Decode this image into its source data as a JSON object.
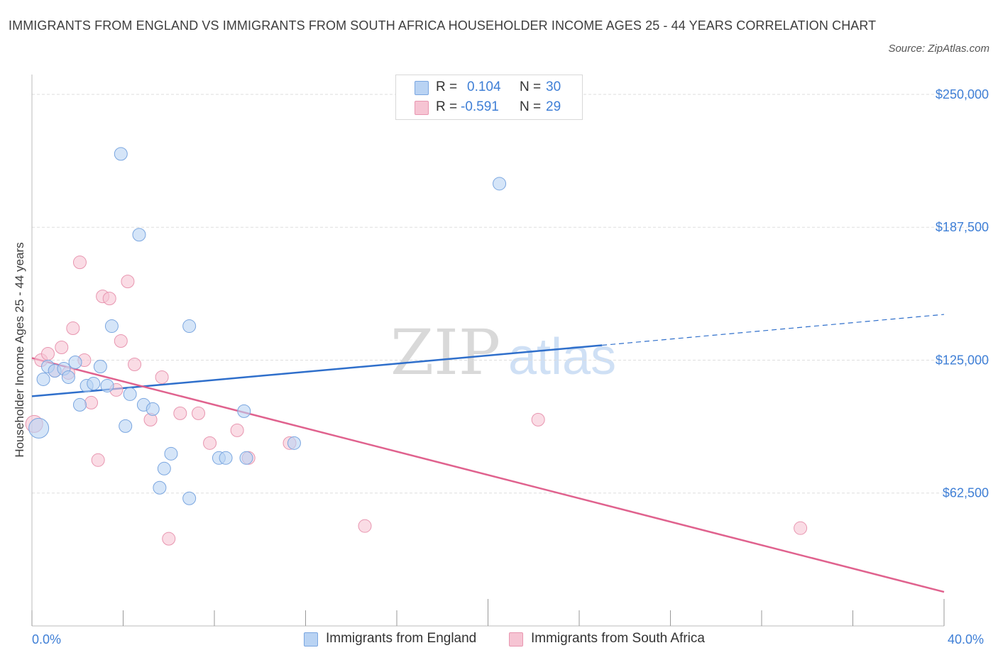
{
  "title": "IMMIGRANTS FROM ENGLAND VS IMMIGRANTS FROM SOUTH AFRICA HOUSEHOLDER INCOME AGES 25 - 44 YEARS CORRELATION CHART",
  "source": "Source: ZipAtlas.com",
  "watermark": {
    "zip": "ZIP",
    "atlas": "atlas"
  },
  "legend": {
    "england": {
      "r_label": "R =",
      "r_value": "0.104",
      "n_label": "N =",
      "n_value": "30"
    },
    "south_africa": {
      "r_label": "R =",
      "r_value": "-0.591",
      "n_label": "N =",
      "n_value": "29"
    }
  },
  "colors": {
    "england_fill": "#b9d3f3",
    "england_stroke": "#7aa6e0",
    "england_line": "#2f6fcb",
    "sa_fill": "#f6c4d3",
    "sa_stroke": "#e896b0",
    "sa_line": "#e0628e",
    "axis_text": "#3f7fd6",
    "grid": "#dddddd"
  },
  "chart_data": {
    "type": "scatter",
    "title": "IMMIGRANTS FROM ENGLAND VS IMMIGRANTS FROM SOUTH AFRICA HOUSEHOLDER INCOME AGES 25 - 44 YEARS CORRELATION CHART",
    "xlabel": "",
    "ylabel": "Householder Income Ages 25 - 44 years",
    "xlim": [
      0,
      40
    ],
    "ylim": [
      0,
      255000
    ],
    "x_tick_labels": [
      "0.0%",
      "40.0%"
    ],
    "y_ticks": [
      62500,
      125000,
      187500,
      250000
    ],
    "y_tick_labels": [
      "$62,500",
      "$125,000",
      "$187,500",
      "$250,000"
    ],
    "grid": true,
    "series": [
      {
        "name": "Immigrants from England",
        "points": [
          [
            0.3,
            93000,
            14
          ],
          [
            0.5,
            116000,
            9
          ],
          [
            0.7,
            122000,
            9
          ],
          [
            1.0,
            120000,
            9
          ],
          [
            1.4,
            121000,
            9
          ],
          [
            1.6,
            117000,
            9
          ],
          [
            1.9,
            124000,
            9
          ],
          [
            2.1,
            104000,
            9
          ],
          [
            2.4,
            113000,
            9
          ],
          [
            2.7,
            114000,
            9
          ],
          [
            3.0,
            122000,
            9
          ],
          [
            3.3,
            113000,
            9
          ],
          [
            3.5,
            141000,
            9
          ],
          [
            3.9,
            222000,
            9
          ],
          [
            4.1,
            94000,
            9
          ],
          [
            4.3,
            109000,
            9
          ],
          [
            4.7,
            184000,
            9
          ],
          [
            4.9,
            104000,
            9
          ],
          [
            5.3,
            102000,
            9
          ],
          [
            5.6,
            65000,
            9
          ],
          [
            5.8,
            74000,
            9
          ],
          [
            6.1,
            81000,
            9
          ],
          [
            6.9,
            60000,
            9
          ],
          [
            6.9,
            141000,
            9
          ],
          [
            8.2,
            79000,
            9
          ],
          [
            8.5,
            79000,
            9
          ],
          [
            9.3,
            101000,
            9
          ],
          [
            9.4,
            79000,
            9
          ],
          [
            11.5,
            86000,
            9
          ],
          [
            20.5,
            208000,
            9
          ]
        ],
        "trend": {
          "x_start": 0,
          "y_start": 108000,
          "x_end": 25,
          "y_end": 132000,
          "dashed_to_x": 40,
          "dashed_to_y": 146500
        }
      },
      {
        "name": "Immigrants from South Africa",
        "points": [
          [
            0.1,
            95000,
            12
          ],
          [
            0.4,
            125000,
            9
          ],
          [
            0.7,
            128000,
            9
          ],
          [
            1.0,
            120000,
            9
          ],
          [
            1.3,
            131000,
            9
          ],
          [
            1.6,
            119000,
            9
          ],
          [
            1.8,
            140000,
            9
          ],
          [
            2.1,
            171000,
            9
          ],
          [
            2.3,
            125000,
            9
          ],
          [
            2.6,
            105000,
            9
          ],
          [
            2.9,
            78000,
            9
          ],
          [
            3.1,
            155000,
            9
          ],
          [
            3.4,
            154000,
            9
          ],
          [
            3.9,
            134000,
            9
          ],
          [
            4.2,
            162000,
            9
          ],
          [
            4.5,
            123000,
            9
          ],
          [
            3.7,
            111000,
            9
          ],
          [
            5.2,
            97000,
            9
          ],
          [
            5.7,
            117000,
            9
          ],
          [
            6.5,
            100000,
            9
          ],
          [
            6.0,
            41000,
            9
          ],
          [
            7.3,
            100000,
            9
          ],
          [
            7.8,
            86000,
            9
          ],
          [
            9.0,
            92000,
            9
          ],
          [
            9.5,
            79000,
            9
          ],
          [
            11.3,
            86000,
            9
          ],
          [
            14.6,
            47000,
            9
          ],
          [
            22.2,
            97000,
            9
          ],
          [
            33.7,
            46000,
            9
          ]
        ],
        "trend": {
          "x_start": 0,
          "y_start": 126000,
          "x_end": 40,
          "y_end": 16000
        }
      }
    ]
  }
}
